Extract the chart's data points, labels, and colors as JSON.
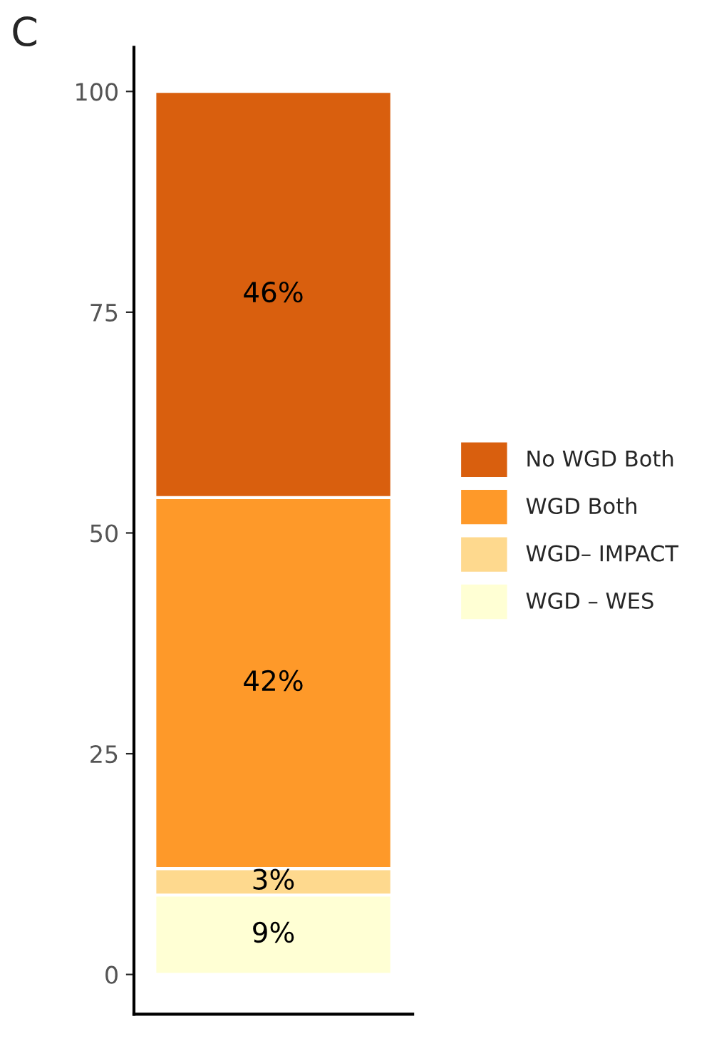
{
  "chart_data": {
    "type": "bar",
    "title": "C",
    "categories": [
      null
    ],
    "stacked": true,
    "series": [
      {
        "name": "WGD – WES",
        "color": "#ffffd4",
        "values": [
          9
        ],
        "value_labels": [
          "9%"
        ]
      },
      {
        "name": "WGD– IMPACT",
        "color": "#fed98e",
        "values": [
          3
        ],
        "value_labels": [
          "3%"
        ]
      },
      {
        "name": "WGD Both",
        "color": "#fe9929",
        "values": [
          42
        ],
        "value_labels": [
          "42%"
        ]
      },
      {
        "name": "No WGD Both",
        "color": "#d95f0e",
        "values": [
          46
        ],
        "value_labels": [
          "46%"
        ]
      }
    ],
    "ylim": [
      0,
      100
    ],
    "yticks": [
      0,
      25,
      50,
      75,
      100
    ],
    "grid": false,
    "legend": "right"
  }
}
